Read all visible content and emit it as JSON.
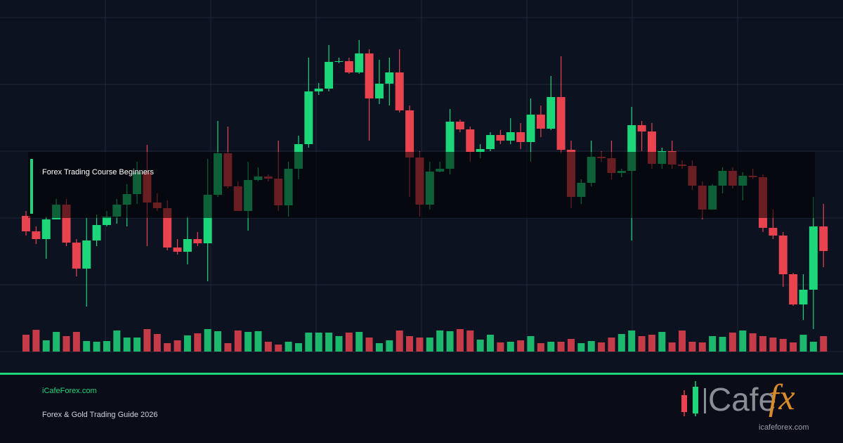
{
  "chart_data": {
    "type": "candlestick",
    "open": [
      193,
      171,
      160,
      188,
      209,
      155,
      118,
      158,
      180,
      192,
      209,
      224,
      255,
      212,
      204,
      148,
      142,
      160,
      154,
      223,
      282,
      235,
      200,
      244,
      249,
      246,
      208,
      260,
      295,
      370,
      374,
      412,
      413,
      397,
      424,
      360,
      381,
      397,
      343,
      276,
      209,
      256,
      260,
      327,
      316,
      284,
      288,
      308,
      300,
      312,
      298,
      337,
      317,
      362,
      287,
      220,
      240,
      277,
      275,
      254,
      257,
      322,
      313,
      267,
      285,
      266,
      264,
      236,
      202,
      236,
      257,
      236,
      250,
      248,
      176,
      165,
      110,
      67,
      88,
      178
    ],
    "high": [
      200,
      178,
      192,
      217,
      217,
      160,
      190,
      195,
      200,
      217,
      238,
      270,
      294,
      225,
      215,
      160,
      192,
      170,
      274,
      328,
      320,
      242,
      270,
      262,
      252,
      300,
      270,
      307,
      418,
      382,
      436,
      418,
      418,
      443,
      430,
      415,
      418,
      430,
      350,
      285,
      270,
      270,
      345,
      330,
      320,
      295,
      312,
      315,
      332,
      325,
      360,
      350,
      392,
      420,
      300,
      245,
      300,
      285,
      300,
      260,
      348,
      328,
      325,
      290,
      300,
      272,
      272,
      242,
      238,
      262,
      262,
      255,
      260,
      252,
      202,
      170,
      112,
      110,
      220,
      210
    ],
    "low": [
      165,
      153,
      132,
      188,
      150,
      107,
      64,
      150,
      178,
      182,
      178,
      210,
      150,
      200,
      144,
      138,
      124,
      150,
      100,
      220,
      232,
      200,
      172,
      242,
      242,
      200,
      192,
      245,
      290,
      365,
      370,
      410,
      395,
      395,
      300,
      352,
      350,
      340,
      220,
      192,
      202,
      255,
      252,
      312,
      270,
      275,
      285,
      295,
      295,
      288,
      270,
      305,
      315,
      282,
      204,
      210,
      235,
      270,
      245,
      248,
      158,
      285,
      260,
      260,
      260,
      260,
      230,
      188,
      202,
      225,
      232,
      215,
      245,
      170,
      160,
      92,
      65,
      45,
      32,
      120
    ],
    "close": [
      171,
      160,
      188,
      209,
      155,
      118,
      158,
      180,
      192,
      209,
      224,
      255,
      212,
      204,
      148,
      142,
      160,
      154,
      223,
      282,
      235,
      200,
      244,
      249,
      246,
      208,
      260,
      295,
      370,
      374,
      412,
      413,
      397,
      424,
      360,
      381,
      397,
      343,
      276,
      209,
      256,
      260,
      327,
      316,
      284,
      288,
      308,
      300,
      312,
      298,
      337,
      317,
      362,
      287,
      220,
      240,
      277,
      275,
      254,
      257,
      322,
      313,
      267,
      285,
      266,
      264,
      236,
      202,
      236,
      257,
      236,
      250,
      248,
      176,
      165,
      110,
      67,
      88,
      178,
      143
    ],
    "volume": [
      24,
      31,
      16,
      28,
      22,
      28,
      15,
      14,
      15,
      30,
      20,
      20,
      32,
      25,
      12,
      16,
      23,
      26,
      32,
      29,
      12,
      30,
      28,
      29,
      14,
      10,
      14,
      12,
      27,
      27,
      27,
      22,
      27,
      28,
      20,
      12,
      16,
      30,
      22,
      20,
      20,
      30,
      29,
      32,
      30,
      17,
      24,
      13,
      14,
      16,
      22,
      12,
      14,
      14,
      18,
      12,
      15,
      13,
      20,
      25,
      30,
      22,
      24,
      28,
      13,
      30,
      14,
      13,
      22,
      21,
      27,
      30,
      26,
      22,
      20,
      18,
      13,
      24,
      14,
      22
    ],
    "ylim": [
      0,
      500
    ],
    "volume_ylim": [
      0,
      500
    ],
    "up_color": "#1ed67a",
    "down_color": "#e8434f",
    "grid": true,
    "annotation": "Forex Trading Course Beginners"
  },
  "footer": {
    "site": "iCafeForex.com",
    "subtitle": "Forex & Gold Trading Guide 2026",
    "logo_main": "Cafe",
    "logo_accent": "fx",
    "logo_url": "icafeforex.com"
  }
}
